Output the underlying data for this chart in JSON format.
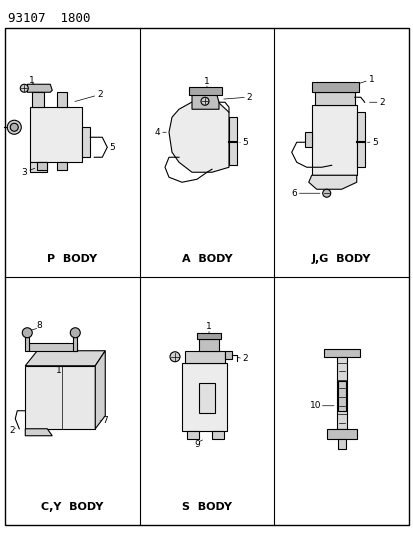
{
  "title": "93107  1800",
  "background_color": "#ffffff",
  "line_color": "#000000",
  "figsize": [
    4.14,
    5.33
  ],
  "dpi": 100,
  "title_fontsize": 9,
  "label_fontsize": 8,
  "cells": [
    {
      "label": "P  BODY",
      "col": 0,
      "row": 0
    },
    {
      "label": "A  BODY",
      "col": 1,
      "row": 0
    },
    {
      "label": "J,G  BODY",
      "col": 2,
      "row": 0
    },
    {
      "label": "C,Y  BODY",
      "col": 0,
      "row": 1
    },
    {
      "label": "S  BODY",
      "col": 1,
      "row": 1
    }
  ],
  "col_splits": [
    0.0,
    0.333,
    0.667,
    1.0
  ],
  "row_splits": [
    0.0,
    0.5,
    1.0
  ],
  "border": [
    5,
    28,
    409,
    525
  ]
}
